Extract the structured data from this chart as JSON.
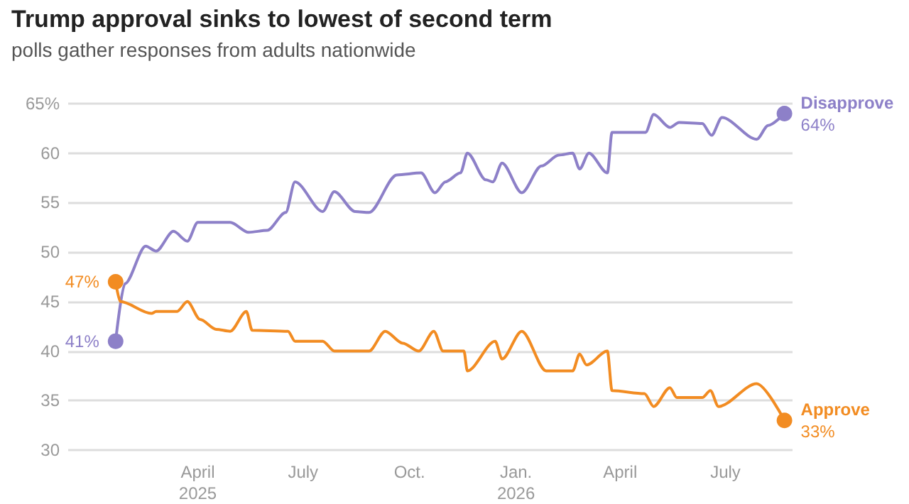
{
  "chart_data": {
    "type": "line",
    "title": "Trump approval sinks to lowest of second term",
    "subtitle": "polls gather responses from adults nationwide",
    "xlim": [
      "2024-12-10",
      "2026-08-28"
    ],
    "xticks": [
      {
        "value": "2025-04-01",
        "label": "April\n2025"
      },
      {
        "value": "2025-07-01",
        "label": "July"
      },
      {
        "value": "2025-10-01",
        "label": "Oct."
      },
      {
        "value": "2026-01-01",
        "label": "Jan.\n2026"
      },
      {
        "value": "2026-04-01",
        "label": "April"
      },
      {
        "value": "2026-07-01",
        "label": "July"
      }
    ],
    "ylim": [
      30,
      65
    ],
    "yticks": [
      30,
      35,
      40,
      45,
      50,
      55,
      60,
      {
        "value": 65,
        "label": "65%"
      }
    ],
    "grid": "y",
    "legend": false,
    "marker": "none",
    "line_style": "solid",
    "series": [
      {
        "name": "Disapprove",
        "color": "#8d80c8",
        "x": [
          "2025-01-20",
          "2025-01-28",
          "2025-02-15",
          "2025-02-24",
          "2025-03-11",
          "2025-03-23",
          "2025-04-01",
          "2025-04-29",
          "2025-05-15",
          "2025-05-31",
          "2025-06-16",
          "2025-06-24",
          "2025-07-18",
          "2025-07-28",
          "2025-08-15",
          "2025-08-27",
          "2025-09-20",
          "2025-10-11",
          "2025-10-23",
          "2025-11-01",
          "2025-11-14",
          "2025-11-20",
          "2025-12-06",
          "2025-12-12",
          "2025-12-20",
          "2026-01-06",
          "2026-01-23",
          "2026-02-07",
          "2026-02-19",
          "2026-02-25",
          "2026-03-05",
          "2026-03-21",
          "2026-03-25",
          "2026-04-23",
          "2026-04-30",
          "2026-05-14",
          "2026-05-22",
          "2026-06-11",
          "2026-06-19",
          "2026-06-28",
          "2026-07-28",
          "2026-08-07",
          "2026-08-21"
        ],
        "values": [
          41,
          46.8,
          50.6,
          50.1,
          52.1,
          51.1,
          53,
          53,
          52,
          52.2,
          54,
          57.1,
          54.1,
          56.1,
          54.1,
          54,
          57.8,
          58,
          56,
          57.1,
          58,
          60,
          57.3,
          57.1,
          59,
          56,
          58.7,
          59.8,
          60,
          58.4,
          60,
          58,
          62.1,
          62.1,
          63.9,
          62.6,
          63.1,
          63,
          61.8,
          63.6,
          61.4,
          62.8,
          64
        ],
        "value_labels": [
          "41%",
          null,
          null,
          null,
          null,
          null,
          null,
          null,
          null,
          null,
          null,
          null,
          null,
          null,
          null,
          null,
          null,
          null,
          null,
          null,
          null,
          null,
          null,
          null,
          null,
          null,
          null,
          null,
          null,
          null,
          null,
          null,
          null,
          null,
          null,
          null,
          null,
          null,
          null,
          null,
          null,
          null,
          "64%"
        ]
      },
      {
        "name": "Approve",
        "color": "#f28c22",
        "x": [
          "2025-01-20",
          "2025-01-24",
          "2025-02-20",
          "2025-02-24",
          "2025-03-14",
          "2025-03-23",
          "2025-04-03",
          "2025-04-17",
          "2025-04-29",
          "2025-05-13",
          "2025-05-18",
          "2025-06-18",
          "2025-06-24",
          "2025-07-18",
          "2025-07-28",
          "2025-08-27",
          "2025-09-10",
          "2025-09-25",
          "2025-10-09",
          "2025-10-22",
          "2025-10-30",
          "2025-11-17",
          "2025-11-20",
          "2025-12-14",
          "2025-12-20",
          "2026-01-06",
          "2026-01-27",
          "2026-02-19",
          "2026-02-25",
          "2026-03-03",
          "2026-03-21",
          "2026-03-25",
          "2026-04-22",
          "2026-04-30",
          "2026-05-14",
          "2026-05-20",
          "2026-06-11",
          "2026-06-18",
          "2026-06-25",
          "2026-07-28",
          "2026-08-21"
        ],
        "values": [
          47,
          45,
          43.8,
          44,
          44,
          45,
          43.2,
          42.2,
          42,
          44,
          42.1,
          42,
          41,
          41,
          40,
          40,
          42,
          40.8,
          40,
          42,
          40,
          40,
          38,
          41,
          39.2,
          42,
          38,
          38,
          39.7,
          38.6,
          40,
          36,
          35.7,
          34.4,
          36.3,
          35.3,
          35.3,
          36,
          34.4,
          36.7,
          33
        ],
        "value_labels": [
          "47%",
          null,
          null,
          null,
          null,
          null,
          null,
          null,
          null,
          null,
          null,
          null,
          null,
          null,
          null,
          null,
          null,
          null,
          null,
          null,
          null,
          null,
          null,
          null,
          null,
          null,
          null,
          null,
          null,
          null,
          null,
          null,
          null,
          null,
          null,
          null,
          null,
          null,
          null,
          null,
          "33%"
        ]
      }
    ]
  }
}
